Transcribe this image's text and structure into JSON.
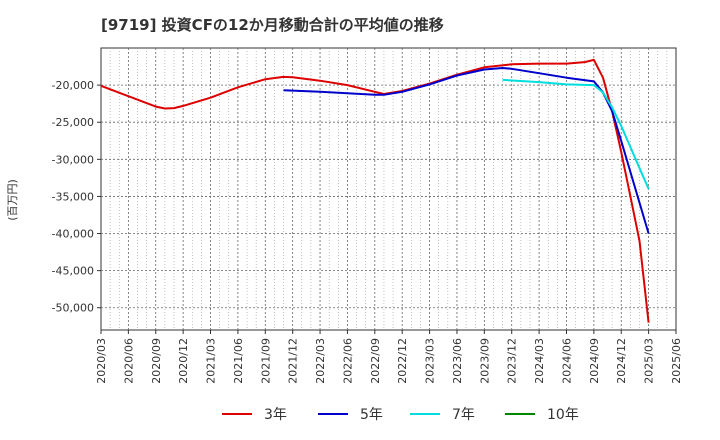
{
  "chart_data": {
    "type": "line",
    "title": "[9719]  投資CFの12か月移動合計の平均値の推移",
    "ylabel": "(百万円)",
    "xlabel": "",
    "ylim": [
      -53000,
      -15000
    ],
    "yticks": [
      -20000,
      -25000,
      -30000,
      -35000,
      -40000,
      -45000,
      -50000
    ],
    "ytick_labels": [
      "-20,000",
      "-25,000",
      "-30,000",
      "-35,000",
      "-40,000",
      "-45,000",
      "-50,000"
    ],
    "x_start": "2020/03",
    "x_end": "2025/06",
    "xtick_labels": [
      "2020/03",
      "2020/06",
      "2020/09",
      "2020/12",
      "2021/03",
      "2021/06",
      "2021/09",
      "2021/12",
      "2022/03",
      "2022/06",
      "2022/09",
      "2022/12",
      "2023/03",
      "2023/06",
      "2023/09",
      "2023/12",
      "2024/03",
      "2024/06",
      "2024/09",
      "2024/12",
      "2025/03",
      "2025/06"
    ],
    "grid": true,
    "legend_position": "bottom",
    "series": [
      {
        "name": "3年",
        "color": "#dd0000",
        "points": [
          [
            "2020/03",
            -20100
          ],
          [
            "2020/06",
            -21500
          ],
          [
            "2020/09",
            -22900
          ],
          [
            "2020/10",
            -23150
          ],
          [
            "2020/11",
            -23100
          ],
          [
            "2020/12",
            -22800
          ],
          [
            "2021/03",
            -21700
          ],
          [
            "2021/06",
            -20300
          ],
          [
            "2021/09",
            -19200
          ],
          [
            "2021/11",
            -18900
          ],
          [
            "2021/12",
            -18950
          ],
          [
            "2022/03",
            -19400
          ],
          [
            "2022/06",
            -20000
          ],
          [
            "2022/09",
            -20900
          ],
          [
            "2022/10",
            -21200
          ],
          [
            "2022/12",
            -20800
          ],
          [
            "2023/03",
            -19800
          ],
          [
            "2023/06",
            -18600
          ],
          [
            "2023/09",
            -17600
          ],
          [
            "2023/12",
            -17200
          ],
          [
            "2024/03",
            -17100
          ],
          [
            "2024/06",
            -17100
          ],
          [
            "2024/08",
            -16900
          ],
          [
            "2024/09",
            -16600
          ],
          [
            "2024/10",
            -19000
          ],
          [
            "2024/11",
            -23500
          ],
          [
            "2024/12",
            -29000
          ],
          [
            "2025/01",
            -35000
          ],
          [
            "2025/02",
            -41000
          ],
          [
            "2025/03",
            -52000
          ]
        ]
      },
      {
        "name": "5年",
        "color": "#0000cc",
        "points": [
          [
            "2021/11",
            -20700
          ],
          [
            "2022/03",
            -20900
          ],
          [
            "2022/06",
            -21100
          ],
          [
            "2022/09",
            -21300
          ],
          [
            "2022/10",
            -21300
          ],
          [
            "2022/12",
            -20900
          ],
          [
            "2023/03",
            -19900
          ],
          [
            "2023/06",
            -18700
          ],
          [
            "2023/09",
            -17900
          ],
          [
            "2023/11",
            -17700
          ],
          [
            "2023/12",
            -17800
          ],
          [
            "2024/03",
            -18400
          ],
          [
            "2024/06",
            -19000
          ],
          [
            "2024/09",
            -19500
          ],
          [
            "2024/10",
            -21000
          ],
          [
            "2024/11",
            -23500
          ],
          [
            "2024/12",
            -27500
          ],
          [
            "2025/03",
            -40000
          ]
        ]
      },
      {
        "name": "7年",
        "color": "#00dddd",
        "points": [
          [
            "2023/11",
            -19300
          ],
          [
            "2024/03",
            -19600
          ],
          [
            "2024/06",
            -19900
          ],
          [
            "2024/09",
            -20000
          ],
          [
            "2024/10",
            -21000
          ],
          [
            "2024/11",
            -23000
          ],
          [
            "2024/12",
            -25500
          ],
          [
            "2025/03",
            -34000
          ]
        ]
      },
      {
        "name": "10年",
        "color": "#008800",
        "points": []
      }
    ]
  }
}
